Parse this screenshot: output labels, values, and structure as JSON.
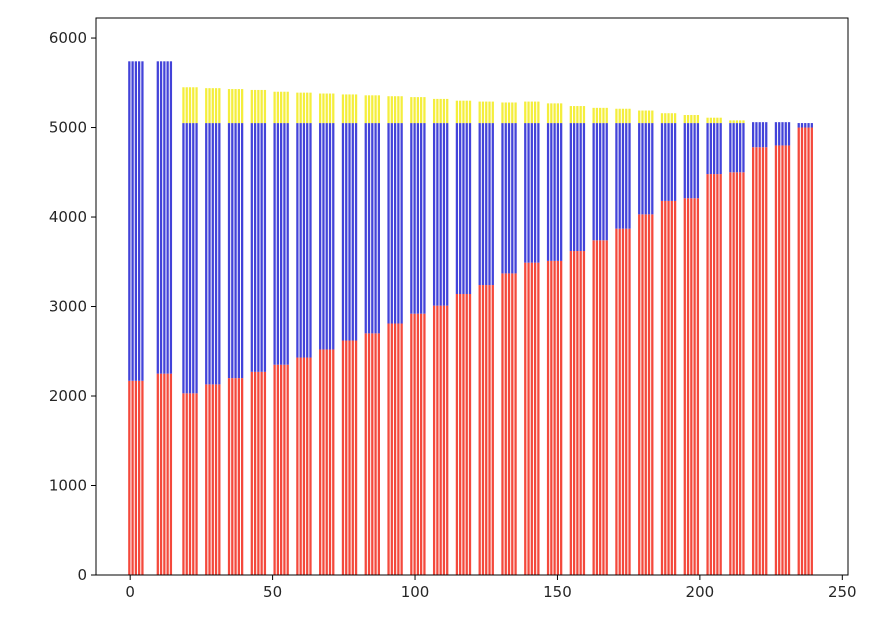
{
  "figure": {
    "background": "#ffffff"
  },
  "chart_data": {
    "type": "bar",
    "stacked": true,
    "title": "",
    "xlabel": "",
    "ylabel": "",
    "grid": false,
    "legend": "none",
    "xlim": [
      -12,
      252
    ],
    "ylim": [
      0,
      6224
    ],
    "x_ticks": [
      0,
      50,
      100,
      150,
      200,
      250
    ],
    "y_ticks": [
      0,
      1000,
      2000,
      3000,
      4000,
      5000,
      6000
    ],
    "colors": {
      "red": "#f4493c",
      "blue": "#4343d9",
      "yellow": "#f4ee3c"
    },
    "series_names": [
      "red",
      "blue",
      "yellow"
    ],
    "bars_per_cluster": 5,
    "bar_width": 0.8,
    "bar_pitch": 1.15,
    "clusters": [
      {
        "x": 2,
        "red": 2170,
        "blue_top": 5740,
        "yellow_top": null
      },
      {
        "x": 12,
        "red": 2250,
        "blue_top": 5740,
        "yellow_top": null
      },
      {
        "x": 21,
        "red": 2030,
        "blue_top": 5050,
        "yellow_top": 5450
      },
      {
        "x": 29,
        "red": 2130,
        "blue_top": 5050,
        "yellow_top": 5440
      },
      {
        "x": 37,
        "red": 2200,
        "blue_top": 5050,
        "yellow_top": 5430
      },
      {
        "x": 45,
        "red": 2270,
        "blue_top": 5050,
        "yellow_top": 5420
      },
      {
        "x": 53,
        "red": 2350,
        "blue_top": 5050,
        "yellow_top": 5400
      },
      {
        "x": 61,
        "red": 2430,
        "blue_top": 5050,
        "yellow_top": 5390
      },
      {
        "x": 69,
        "red": 2520,
        "blue_top": 5050,
        "yellow_top": 5380
      },
      {
        "x": 77,
        "red": 2620,
        "blue_top": 5050,
        "yellow_top": 5370
      },
      {
        "x": 85,
        "red": 2700,
        "blue_top": 5050,
        "yellow_top": 5360
      },
      {
        "x": 93,
        "red": 2810,
        "blue_top": 5050,
        "yellow_top": 5350
      },
      {
        "x": 101,
        "red": 2920,
        "blue_top": 5050,
        "yellow_top": 5340
      },
      {
        "x": 109,
        "red": 3010,
        "blue_top": 5050,
        "yellow_top": 5320
      },
      {
        "x": 117,
        "red": 3140,
        "blue_top": 5050,
        "yellow_top": 5300
      },
      {
        "x": 125,
        "red": 3240,
        "blue_top": 5050,
        "yellow_top": 5290
      },
      {
        "x": 133,
        "red": 3370,
        "blue_top": 5050,
        "yellow_top": 5280
      },
      {
        "x": 141,
        "red": 3490,
        "blue_top": 5050,
        "yellow_top": 5290
      },
      {
        "x": 149,
        "red": 3510,
        "blue_top": 5050,
        "yellow_top": 5270
      },
      {
        "x": 157,
        "red": 3620,
        "blue_top": 5050,
        "yellow_top": 5240
      },
      {
        "x": 165,
        "red": 3740,
        "blue_top": 5050,
        "yellow_top": 5220
      },
      {
        "x": 173,
        "red": 3870,
        "blue_top": 5050,
        "yellow_top": 5210
      },
      {
        "x": 181,
        "red": 4030,
        "blue_top": 5050,
        "yellow_top": 5190
      },
      {
        "x": 189,
        "red": 4180,
        "blue_top": 5050,
        "yellow_top": 5160
      },
      {
        "x": 197,
        "red": 4210,
        "blue_top": 5050,
        "yellow_top": 5140
      },
      {
        "x": 205,
        "red": 4480,
        "blue_top": 5050,
        "yellow_top": 5110
      },
      {
        "x": 213,
        "red": 4500,
        "blue_top": 5050,
        "yellow_top": 5080
      },
      {
        "x": 221,
        "red": 4780,
        "blue_top": 5060,
        "yellow_top": null
      },
      {
        "x": 229,
        "red": 4800,
        "blue_top": 5060,
        "yellow_top": null
      },
      {
        "x": 237,
        "red": 5000,
        "blue_top": 5050,
        "yellow_top": null
      }
    ]
  }
}
